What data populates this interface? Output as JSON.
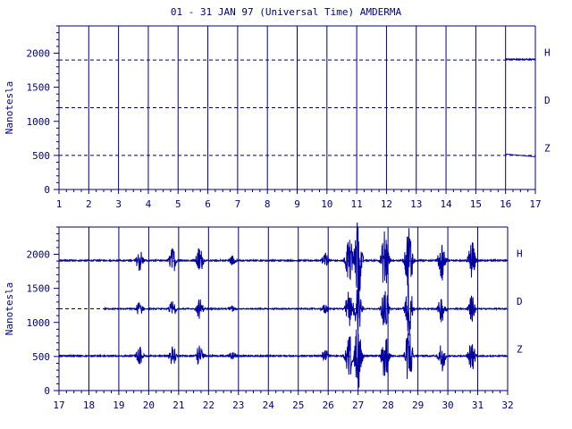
{
  "title": "01 - 31 JAN 97 (Universal Time) AMDERMA",
  "colors": {
    "axis": "#00007f",
    "trace": "#0000a0",
    "background": "#ffffff"
  },
  "chart_data": [
    {
      "type": "line",
      "panel": "top",
      "ylabel": "Nanotesla",
      "ylim": [
        0,
        2400
      ],
      "yticks": [
        0,
        500,
        1000,
        1500,
        2000
      ],
      "xlim": [
        1,
        17
      ],
      "xticks": [
        1,
        2,
        3,
        4,
        5,
        6,
        7,
        8,
        9,
        10,
        11,
        12,
        13,
        14,
        15,
        16,
        17
      ],
      "components": [
        {
          "name": "H",
          "baseline": 1900,
          "data_start": 16.0,
          "data_end": 17.0,
          "level": 1910
        },
        {
          "name": "D",
          "baseline": 1200,
          "data_start": null,
          "data_end": null,
          "level": null
        },
        {
          "name": "Z",
          "baseline": 500,
          "data_start": 16.0,
          "data_end": 17.0,
          "level": 520
        }
      ]
    },
    {
      "type": "line",
      "panel": "bottom",
      "ylabel": "Nanotesla",
      "ylim": [
        0,
        2400
      ],
      "yticks": [
        0,
        500,
        1000,
        1500,
        2000
      ],
      "xlim": [
        17,
        32
      ],
      "xticks": [
        17,
        18,
        19,
        20,
        21,
        22,
        23,
        24,
        25,
        26,
        27,
        28,
        29,
        30,
        31,
        32
      ],
      "components": [
        {
          "name": "H",
          "baseline": 1900,
          "data_start": 17.0,
          "data_end": 32.0,
          "level": 1910
        },
        {
          "name": "D",
          "baseline": 1200,
          "data_start": 18.5,
          "data_end": 32.0,
          "level": 1200
        },
        {
          "name": "Z",
          "baseline": 500,
          "data_start": 17.0,
          "data_end": 32.0,
          "level": 510
        }
      ],
      "disturbances": [
        {
          "day": 19.7,
          "amplitude": 180
        },
        {
          "day": 20.8,
          "amplitude": 200
        },
        {
          "day": 21.7,
          "amplitude": 220
        },
        {
          "day": 22.8,
          "amplitude": 80
        },
        {
          "day": 25.9,
          "amplitude": 120
        },
        {
          "day": 26.7,
          "amplitude": 420
        },
        {
          "day": 27.0,
          "amplitude": 650
        },
        {
          "day": 27.9,
          "amplitude": 520
        },
        {
          "day": 28.7,
          "amplitude": 600
        },
        {
          "day": 29.8,
          "amplitude": 300
        },
        {
          "day": 30.8,
          "amplitude": 300
        }
      ]
    }
  ]
}
